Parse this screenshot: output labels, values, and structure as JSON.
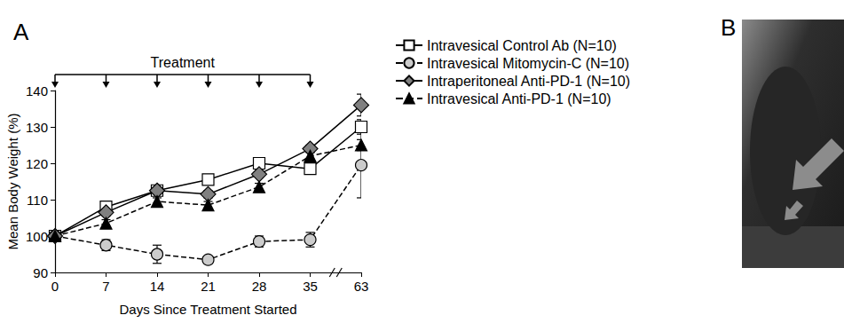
{
  "chart_data": {
    "type": "line",
    "panel_label": "A",
    "x_label": "Days Since Treatment Started",
    "y_label": "Mean Body Weight (%)",
    "categories": [
      "0",
      "7",
      "14",
      "21",
      "28",
      "35",
      "63"
    ],
    "ylim": [
      90,
      140
    ],
    "yticks": [
      90,
      100,
      110,
      120,
      130,
      140
    ],
    "grid": false,
    "legend": "top-right",
    "annotation": {
      "text": "Treatment",
      "x": [
        "0",
        "7",
        "14",
        "21",
        "28",
        "35"
      ]
    },
    "series": [
      {
        "name": "Intravesical Control Ab (N=10)",
        "color": "#ffffff",
        "marker": "square",
        "line_style": "solid",
        "values": [
          100,
          108,
          112.5,
          115.5,
          120,
          118.5,
          130
        ],
        "errors": [
          0,
          1,
          1,
          1,
          1,
          1,
          2
        ]
      },
      {
        "name": "Intravesical Mitomycin-C (N=10)",
        "color": "#cccccc",
        "marker": "circle",
        "line_style": "dashed",
        "values": [
          100,
          97.5,
          95,
          93.5,
          98.5,
          99,
          119.5
        ],
        "errors": [
          0,
          1.5,
          2.5,
          0.7,
          1.5,
          2,
          9
        ]
      },
      {
        "name": "Intraperitoneal Anti-PD-1 (N=10)",
        "color": "#808080",
        "marker": "diamond",
        "line_style": "solid",
        "values": [
          100,
          106.5,
          112.5,
          111.5,
          117,
          124,
          136
        ],
        "errors": [
          0,
          1,
          1,
          1,
          1,
          1,
          3
        ]
      },
      {
        "name": "Intravesical Anti-PD-1 (N=10)",
        "color": "#000000",
        "marker": "triangle",
        "line_style": "dashed",
        "values": [
          100,
          103.5,
          109.5,
          108.5,
          113.5,
          122,
          125
        ],
        "errors": [
          0,
          1,
          1,
          1,
          1,
          1,
          1.5
        ]
      }
    ]
  },
  "image_panel": {
    "label": "B"
  }
}
